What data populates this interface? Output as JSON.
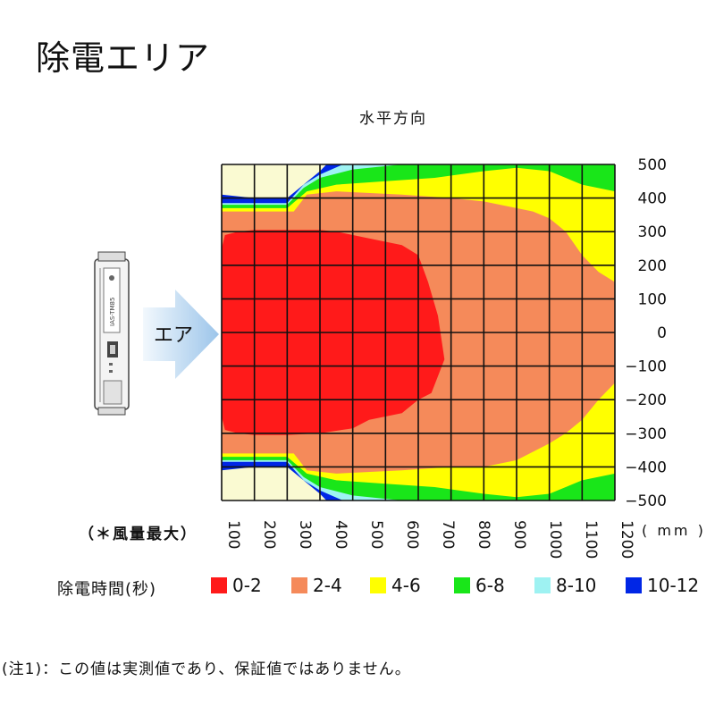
{
  "title": "除電エリア",
  "subtitle": "水平方向",
  "device": {
    "arrow_label": "エア",
    "model_text": "IAS-TM85"
  },
  "note": "(注1)：この値は実測値であり、保証値ではありません。",
  "wind_note": "（＊風量最大）",
  "unit_label": "( mm )",
  "legend": {
    "title": "除電時間(秒)",
    "items": [
      {
        "label": "0-2",
        "color": "#ff1a1a"
      },
      {
        "label": "2-4",
        "color": "#f58a5a"
      },
      {
        "label": "4-6",
        "color": "#ffff00"
      },
      {
        "label": "6-8",
        "color": "#19e619"
      },
      {
        "label": "8-10",
        "color": "#9ef2f2"
      },
      {
        "label": "10-12",
        "color": "#0026e6"
      }
    ]
  },
  "chart_data": {
    "type": "heatmap",
    "title": "除電エリア",
    "subtitle": "水平方向",
    "xlabel": "( mm )",
    "ylabel": "",
    "x_ticks": [
      "100",
      "200",
      "300",
      "400",
      "500",
      "600",
      "700",
      "800",
      "900",
      "1000",
      "1100",
      "1200"
    ],
    "y_ticks": [
      "500",
      "400",
      "300",
      "200",
      "100",
      "0",
      "−100",
      "−200",
      "−300",
      "−400",
      "−500"
    ],
    "xlim": [
      100,
      1200
    ],
    "ylim": [
      -500,
      500
    ],
    "grid": true,
    "background_color": "#fafad2",
    "zones": [
      {
        "range": "10-12",
        "color": "#0026e6",
        "boundary": [
          [
            0,
            410
          ],
          [
            1,
            400
          ],
          [
            2,
            400
          ],
          [
            3,
            480
          ],
          [
            3.2,
            500
          ],
          [
            12,
            500
          ],
          [
            12,
            -500
          ],
          [
            3.2,
            -500
          ],
          [
            3,
            -480
          ],
          [
            2,
            -400
          ],
          [
            1,
            -400
          ],
          [
            0,
            -410
          ]
        ]
      },
      {
        "range": "8-10",
        "color": "#9ef2f2",
        "boundary": [
          [
            0,
            385
          ],
          [
            1,
            385
          ],
          [
            2,
            385
          ],
          [
            2.5,
            440
          ],
          [
            3,
            470
          ],
          [
            3.7,
            500
          ],
          [
            12,
            500
          ],
          [
            12,
            -500
          ],
          [
            3.7,
            -500
          ],
          [
            3,
            -470
          ],
          [
            2.5,
            -440
          ],
          [
            2,
            -385
          ],
          [
            1,
            -385
          ],
          [
            0,
            -385
          ]
        ]
      },
      {
        "range": "6-8",
        "color": "#19e619",
        "boundary": [
          [
            0,
            380
          ],
          [
            2,
            380
          ],
          [
            2.5,
            430
          ],
          [
            3,
            460
          ],
          [
            4,
            485
          ],
          [
            5.5,
            500
          ],
          [
            12,
            500
          ],
          [
            12,
            -500
          ],
          [
            5.5,
            -500
          ],
          [
            4,
            -485
          ],
          [
            3,
            -460
          ],
          [
            2.5,
            -430
          ],
          [
            2,
            -380
          ],
          [
            0,
            -380
          ]
        ]
      },
      {
        "range": "4-6",
        "color": "#ffff00",
        "boundary": [
          [
            0,
            370
          ],
          [
            2,
            370
          ],
          [
            2.6,
            420
          ],
          [
            3.5,
            440
          ],
          [
            5,
            450
          ],
          [
            6.5,
            460
          ],
          [
            8,
            480
          ],
          [
            9,
            490
          ],
          [
            10,
            480
          ],
          [
            11,
            440
          ],
          [
            12,
            420
          ],
          [
            12,
            -420
          ],
          [
            11,
            -440
          ],
          [
            10,
            -480
          ],
          [
            9,
            -490
          ],
          [
            8,
            -480
          ],
          [
            6.5,
            -460
          ],
          [
            5,
            -450
          ],
          [
            3.5,
            -440
          ],
          [
            2.6,
            -420
          ],
          [
            2,
            -370
          ],
          [
            0,
            -370
          ]
        ]
      },
      {
        "range": "2-4",
        "color": "#f58a5a",
        "boundary": [
          [
            0,
            305
          ],
          [
            0,
            360
          ],
          [
            1,
            360
          ],
          [
            2.2,
            360
          ],
          [
            2.6,
            410
          ],
          [
            3.5,
            420
          ],
          [
            5.5,
            410
          ],
          [
            7,
            400
          ],
          [
            8,
            390
          ],
          [
            9,
            370
          ],
          [
            9.5,
            360
          ],
          [
            10,
            340
          ],
          [
            10.5,
            300
          ],
          [
            11,
            230
          ],
          [
            11.5,
            180
          ],
          [
            12,
            150
          ],
          [
            12,
            -150
          ],
          [
            11.5,
            -200
          ],
          [
            11,
            -260
          ],
          [
            10.5,
            -300
          ],
          [
            10,
            -330
          ],
          [
            9,
            -380
          ],
          [
            8,
            -400
          ],
          [
            7,
            -400
          ],
          [
            5.5,
            -410
          ],
          [
            3.5,
            -420
          ],
          [
            2.6,
            -410
          ],
          [
            2.2,
            -360
          ],
          [
            1,
            -360
          ],
          [
            0,
            -360
          ],
          [
            0,
            -305
          ]
        ]
      },
      {
        "range": "0-2",
        "color": "#ff1a1a",
        "boundary": [
          [
            0,
            250
          ],
          [
            0.1,
            290
          ],
          [
            0.5,
            300
          ],
          [
            1,
            305
          ],
          [
            2,
            305
          ],
          [
            3,
            305
          ],
          [
            3.5,
            300
          ],
          [
            4.5,
            280
          ],
          [
            5.5,
            260
          ],
          [
            6,
            230
          ],
          [
            6.3,
            150
          ],
          [
            6.6,
            50
          ],
          [
            6.8,
            -80
          ],
          [
            6.4,
            -180
          ],
          [
            6,
            -200
          ],
          [
            5.5,
            -240
          ],
          [
            4.5,
            -260
          ],
          [
            4,
            -285
          ],
          [
            3,
            -300
          ],
          [
            2,
            -305
          ],
          [
            1,
            -305
          ],
          [
            0.5,
            -300
          ],
          [
            0.1,
            -290
          ],
          [
            0,
            -250
          ]
        ]
      }
    ]
  }
}
